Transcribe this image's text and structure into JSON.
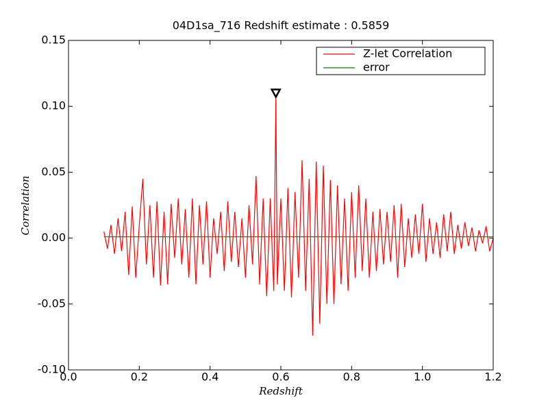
{
  "chart_data": {
    "type": "line",
    "title": "04D1sa_716 Redshift estimate : 0.5859",
    "xlabel": "Redshift",
    "ylabel": "Correlation",
    "xlim": [
      0,
      1.2
    ],
    "ylim": [
      -0.1,
      0.15
    ],
    "xticks": [
      {
        "value": 0,
        "label": "0.0"
      },
      0.2,
      0.4,
      0.6,
      0.8,
      {
        "value": 1,
        "label": "1.0"
      },
      1.2
    ],
    "yticks": [
      {
        "value": -0.1,
        "label": "-0.10"
      },
      -0.05,
      {
        "value": 0,
        "label": "0.00"
      },
      0.05,
      {
        "value": 0.1,
        "label": "0.10"
      },
      0.15
    ],
    "legend": "upper right",
    "peak": {
      "x": 0.5859,
      "y": 0.106
    },
    "series": [
      {
        "name": "Z-let Correlation",
        "color": "#ff0000",
        "x": [
          0.1,
          0.11,
          0.12,
          0.13,
          0.14,
          0.15,
          0.16,
          0.17,
          0.18,
          0.19,
          0.2,
          0.21,
          0.22,
          0.23,
          0.24,
          0.25,
          0.26,
          0.27,
          0.28,
          0.29,
          0.3,
          0.31,
          0.32,
          0.33,
          0.34,
          0.35,
          0.36,
          0.37,
          0.38,
          0.39,
          0.4,
          0.41,
          0.42,
          0.43,
          0.44,
          0.45,
          0.46,
          0.47,
          0.48,
          0.49,
          0.5,
          0.51,
          0.52,
          0.53,
          0.54,
          0.55,
          0.56,
          0.57,
          0.58,
          0.5859,
          0.59,
          0.6,
          0.61,
          0.62,
          0.63,
          0.64,
          0.65,
          0.66,
          0.67,
          0.68,
          0.69,
          0.7,
          0.71,
          0.72,
          0.73,
          0.74,
          0.75,
          0.76,
          0.77,
          0.78,
          0.79,
          0.8,
          0.81,
          0.82,
          0.83,
          0.84,
          0.85,
          0.86,
          0.87,
          0.88,
          0.89,
          0.9,
          0.91,
          0.92,
          0.93,
          0.94,
          0.95,
          0.96,
          0.97,
          0.98,
          0.99,
          1.0,
          1.01,
          1.02,
          1.03,
          1.04,
          1.05,
          1.06,
          1.07,
          1.08,
          1.09,
          1.1,
          1.11,
          1.12,
          1.13,
          1.14,
          1.15,
          1.16,
          1.17,
          1.18,
          1.19,
          1.2
        ],
        "values": [
          0.005,
          -0.008,
          0.01,
          -0.012,
          0.015,
          -0.01,
          0.02,
          -0.028,
          0.024,
          -0.03,
          0.01,
          0.045,
          -0.02,
          0.025,
          -0.03,
          0.028,
          -0.036,
          0.02,
          -0.035,
          0.026,
          -0.015,
          0.03,
          -0.02,
          0.022,
          -0.03,
          0.03,
          -0.035,
          0.025,
          -0.02,
          0.028,
          -0.03,
          0.015,
          -0.012,
          0.02,
          -0.025,
          0.028,
          -0.018,
          0.02,
          -0.022,
          0.015,
          -0.03,
          0.025,
          -0.02,
          0.047,
          -0.035,
          0.03,
          -0.044,
          0.03,
          -0.04,
          0.106,
          -0.035,
          0.03,
          -0.04,
          0.038,
          -0.045,
          0.035,
          -0.03,
          0.059,
          -0.04,
          0.045,
          -0.074,
          0.058,
          -0.065,
          0.055,
          -0.05,
          0.044,
          -0.05,
          0.04,
          -0.035,
          0.03,
          -0.04,
          0.035,
          -0.03,
          0.04,
          -0.025,
          0.03,
          -0.03,
          0.02,
          -0.025,
          0.022,
          -0.02,
          0.02,
          -0.018,
          0.025,
          -0.03,
          0.026,
          -0.022,
          0.015,
          -0.015,
          0.018,
          -0.012,
          0.026,
          -0.018,
          0.015,
          -0.012,
          0.012,
          -0.015,
          0.018,
          -0.01,
          0.02,
          -0.012,
          0.01,
          -0.008,
          0.012,
          -0.006,
          0.008,
          -0.01,
          0.006,
          -0.004,
          0.009,
          -0.01,
          0.0
        ]
      },
      {
        "name": "error",
        "color": "#008000",
        "x": [
          0.1,
          1.2
        ],
        "values": [
          0.001,
          0.001
        ]
      }
    ]
  }
}
